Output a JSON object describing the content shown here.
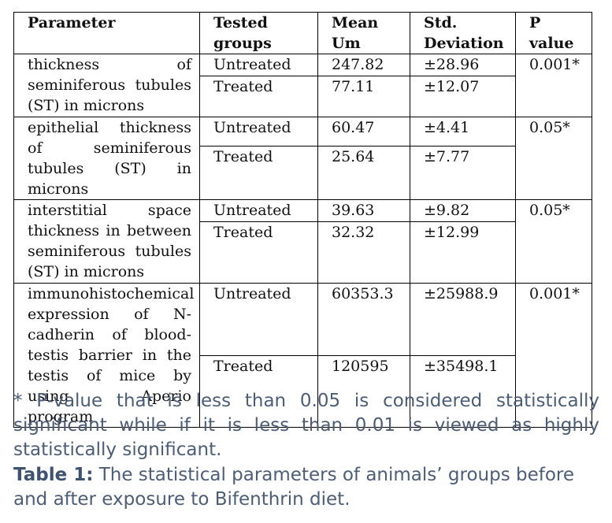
{
  "table": {
    "headers": {
      "parameter": "Parameter",
      "groups": "Tested groups",
      "mean": "Mean Um",
      "sd": "Std. Deviation",
      "p": "P value"
    },
    "rows": [
      {
        "parameter": "thickness of seminiferous tubules (ST) in microns",
        "untreated": {
          "group": "Untreated",
          "mean": "247.82",
          "sd": "±28.96"
        },
        "treated": {
          "group": "Treated",
          "mean": "77.11",
          "sd": "±12.07"
        },
        "p": "0.001*"
      },
      {
        "parameter": "epithelial thickness of seminiferous tubules (ST) in microns",
        "untreated": {
          "group": "Untreated",
          "mean": "60.47",
          "sd": "±4.41"
        },
        "treated": {
          "group": "Treated",
          "mean": "25.64",
          "sd": "±7.77"
        },
        "p": "0.05*"
      },
      {
        "parameter": "interstitial space thickness in between seminiferous tubules (ST) in microns",
        "untreated": {
          "group": "Untreated",
          "mean": "39.63",
          "sd": "±9.82"
        },
        "treated": {
          "group": "Treated",
          "mean": "32.32",
          "sd": "±12.99"
        },
        "p": "0.05*"
      },
      {
        "parameter": "immunohistochemical expression of N-cadherin of blood-testis barrier in the testis of mice by using Aperio program",
        "untreated": {
          "group": "Untreated",
          "mean": "60353.3",
          "sd": "±25988.9"
        },
        "treated": {
          "group": "Treated",
          "mean": "120595",
          "sd": "±35498.1"
        },
        "p": "0.001*"
      }
    ]
  },
  "footnote": "* P-value that is less than 0.05 is considered statistically significant while if it is less than 0.01 is viewed as highly statistically significant.",
  "caption": {
    "label": "Table 1:",
    "text": " The statistical parameters of animals’ groups before and after exposure to Bifenthrin diet."
  }
}
